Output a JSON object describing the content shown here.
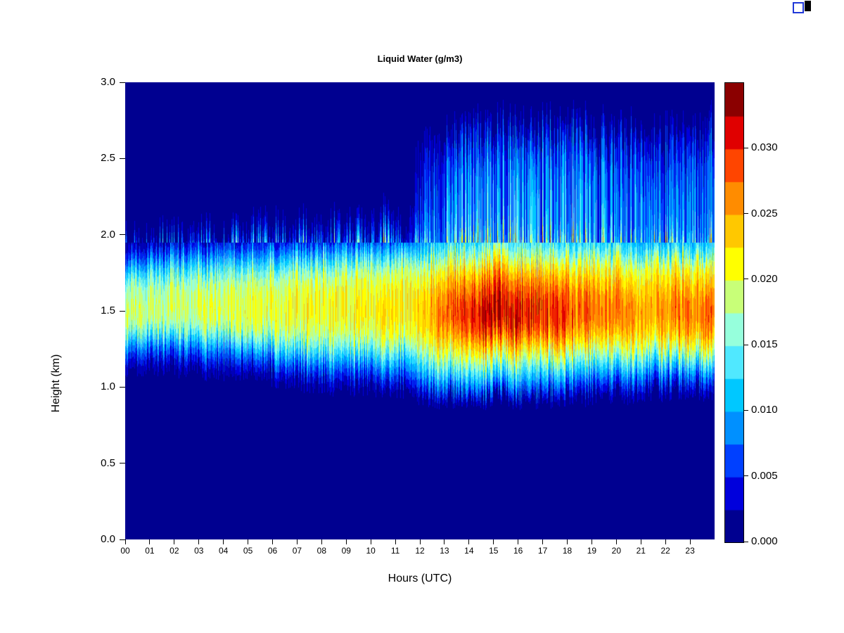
{
  "page": {
    "background": "#ffffff"
  },
  "chart_data": {
    "type": "heatmap",
    "title": "Liquid Water (g/m3)",
    "xlabel": "Hours (UTC)",
    "ylabel": "Height (km)",
    "x_range": [
      0,
      24
    ],
    "y_range": [
      0,
      3
    ],
    "x_tick_labels": [
      "00",
      "01",
      "02",
      "03",
      "04",
      "05",
      "06",
      "07",
      "08",
      "09",
      "10",
      "11",
      "12",
      "13",
      "14",
      "15",
      "16",
      "17",
      "18",
      "19",
      "20",
      "21",
      "22",
      "23"
    ],
    "x_tick_values": [
      0,
      1,
      2,
      3,
      4,
      5,
      6,
      7,
      8,
      9,
      10,
      11,
      12,
      13,
      14,
      15,
      16,
      17,
      18,
      19,
      20,
      21,
      22,
      23
    ],
    "y_tick_labels": [
      "0.0",
      "0.5",
      "1.0",
      "1.5",
      "2.0",
      "2.5",
      "3.0"
    ],
    "y_tick_values": [
      0.0,
      0.5,
      1.0,
      1.5,
      2.0,
      2.5,
      3.0
    ],
    "value_scale": 0.001,
    "grid": {
      "hours": [
        0,
        1,
        2,
        3,
        4,
        5,
        6,
        7,
        8,
        9,
        10,
        11,
        12,
        13,
        14,
        15,
        16,
        17,
        18,
        19,
        20,
        21,
        22,
        23
      ],
      "heights": [
        0.0,
        0.1,
        0.2,
        0.3,
        0.4,
        0.5,
        0.6,
        0.7,
        0.8,
        0.9,
        1.0,
        1.1,
        1.2,
        1.3,
        1.4,
        1.5,
        1.6,
        1.7,
        1.8,
        1.9,
        2.0,
        2.1,
        2.2,
        2.3,
        2.4,
        2.5,
        2.6,
        2.7,
        2.8,
        2.9,
        3.0
      ],
      "values_by_height": [
        [
          0,
          0,
          0,
          0,
          0,
          0,
          0,
          0,
          0,
          0,
          0,
          0,
          0,
          0,
          0,
          0,
          0,
          0,
          0,
          0,
          0,
          0,
          0,
          0
        ],
        [
          0,
          0,
          0,
          0,
          0,
          0,
          0,
          0,
          0,
          0,
          0,
          0,
          0,
          0,
          0,
          0,
          0,
          0,
          0,
          0,
          0,
          0,
          0,
          0
        ],
        [
          0,
          0,
          0,
          0,
          0,
          0,
          0,
          0,
          0,
          0,
          0,
          0,
          0,
          0,
          0,
          0,
          0,
          0,
          0,
          0,
          0,
          0,
          0,
          0
        ],
        [
          0,
          0,
          0,
          0,
          0,
          0,
          0,
          0,
          0,
          0,
          0,
          0,
          0,
          0,
          0,
          0,
          0,
          0,
          0,
          0,
          0,
          0,
          0,
          0
        ],
        [
          0,
          0,
          0,
          0,
          0,
          0,
          0,
          0,
          0,
          0,
          0,
          0,
          0,
          0,
          0,
          0,
          0,
          0,
          0,
          0,
          0,
          0,
          0,
          0
        ],
        [
          0,
          0,
          0,
          0,
          0,
          0,
          0,
          0,
          0,
          0,
          0,
          0,
          0,
          0,
          0,
          0,
          0,
          0,
          0,
          0,
          0,
          0,
          0,
          0
        ],
        [
          0,
          0,
          0,
          0,
          0,
          0,
          0,
          0,
          0,
          0,
          0,
          0,
          0,
          0,
          0,
          0,
          0,
          0,
          0,
          0,
          0,
          0,
          0,
          0
        ],
        [
          0,
          0,
          0,
          0,
          0,
          0,
          0,
          0,
          0,
          0,
          0,
          0,
          0,
          0,
          0,
          0,
          0,
          0,
          0,
          0,
          0,
          0,
          0,
          0
        ],
        [
          0,
          0,
          0,
          0,
          0,
          0,
          0,
          0,
          0,
          0,
          0,
          0,
          0,
          0,
          0,
          0,
          0,
          0,
          0,
          0,
          0,
          0,
          0,
          0
        ],
        [
          0,
          0,
          0,
          0,
          0,
          0,
          0,
          0,
          0,
          0,
          0,
          0,
          0,
          0,
          0,
          0,
          0,
          0,
          0,
          0,
          0,
          0,
          0,
          0
        ],
        [
          0,
          0,
          0,
          0,
          0,
          0,
          1,
          1,
          2,
          2,
          2,
          3,
          6,
          8,
          8,
          8,
          8,
          6,
          5,
          4,
          4,
          3,
          3,
          3
        ],
        [
          1,
          1,
          1,
          2,
          2,
          2,
          4,
          5,
          6,
          6,
          7,
          8,
          12,
          14,
          14,
          14,
          13,
          12,
          11,
          10,
          10,
          9,
          9,
          9
        ],
        [
          4,
          4,
          5,
          6,
          6,
          7,
          10,
          11,
          12,
          12,
          13,
          13,
          17,
          19,
          20,
          20,
          19,
          18,
          17,
          16,
          16,
          15,
          16,
          16
        ],
        [
          10,
          10,
          11,
          12,
          13,
          14,
          16,
          17,
          17,
          18,
          18,
          19,
          21,
          24,
          26,
          26,
          25,
          24,
          23,
          22,
          21,
          21,
          22,
          22
        ],
        [
          17,
          17,
          18,
          18,
          19,
          19,
          20,
          20,
          20,
          21,
          21,
          21,
          24,
          28,
          31,
          31,
          30,
          28,
          27,
          26,
          25,
          24,
          26,
          26
        ],
        [
          19,
          19,
          19,
          20,
          20,
          20,
          21,
          21,
          21,
          22,
          22,
          22,
          25,
          30,
          32,
          32,
          31,
          29,
          28,
          27,
          26,
          25,
          27,
          27
        ],
        [
          18,
          18,
          19,
          19,
          19,
          20,
          20,
          21,
          21,
          21,
          21,
          22,
          24,
          28,
          30,
          30,
          29,
          28,
          27,
          26,
          25,
          24,
          26,
          26
        ],
        [
          16,
          16,
          17,
          17,
          18,
          18,
          19,
          19,
          19,
          20,
          20,
          20,
          22,
          25,
          27,
          27,
          26,
          25,
          24,
          23,
          22,
          22,
          23,
          23
        ],
        [
          10,
          11,
          12,
          12,
          13,
          13,
          14,
          15,
          15,
          16,
          16,
          17,
          19,
          21,
          22,
          22,
          21,
          21,
          20,
          20,
          19,
          19,
          20,
          20
        ],
        [
          4,
          5,
          6,
          6,
          7,
          7,
          8,
          8,
          9,
          9,
          10,
          10,
          13,
          15,
          16,
          16,
          15,
          15,
          14,
          14,
          13,
          12,
          13,
          13
        ],
        [
          1,
          1,
          2,
          2,
          2,
          3,
          3,
          3,
          4,
          4,
          5,
          5,
          10,
          11,
          12,
          12,
          12,
          11,
          11,
          11,
          10,
          9,
          10,
          10
        ],
        [
          0,
          0,
          0,
          0,
          0,
          1,
          1,
          1,
          1,
          1,
          2,
          2,
          9,
          10,
          11,
          11,
          11,
          11,
          10,
          10,
          9,
          8,
          9,
          9
        ],
        [
          0,
          0,
          0,
          0,
          0,
          0,
          0,
          0,
          0,
          1,
          1,
          1,
          8,
          10,
          10,
          10,
          10,
          10,
          10,
          9,
          9,
          8,
          8,
          9
        ],
        [
          0,
          0,
          0,
          0,
          0,
          0,
          0,
          0,
          0,
          0,
          0,
          1,
          7,
          9,
          10,
          10,
          10,
          10,
          9,
          9,
          9,
          7,
          8,
          8
        ],
        [
          0,
          0,
          0,
          0,
          0,
          0,
          0,
          0,
          0,
          0,
          0,
          0,
          6,
          8,
          9,
          9,
          9,
          9,
          9,
          8,
          8,
          6,
          7,
          8
        ],
        [
          1,
          0,
          1,
          0,
          0,
          0,
          0,
          0,
          0,
          0,
          0,
          0,
          5,
          7,
          8,
          8,
          8,
          8,
          8,
          7,
          7,
          5,
          6,
          7
        ],
        [
          1,
          0,
          1,
          0,
          0,
          0,
          0,
          0,
          0,
          0,
          0,
          0,
          3,
          5,
          6,
          6,
          6,
          6,
          6,
          5,
          5,
          3,
          4,
          5
        ],
        [
          0,
          0,
          0,
          0,
          0,
          0,
          0,
          0,
          0,
          0,
          0,
          0,
          1,
          2,
          3,
          3,
          3,
          3,
          3,
          2,
          2,
          1,
          2,
          3
        ],
        [
          0,
          0,
          0,
          0,
          0,
          0,
          0,
          0,
          0,
          0,
          0,
          0,
          0,
          0,
          0,
          0,
          0,
          0,
          0,
          0,
          0,
          0,
          0,
          0
        ],
        [
          0,
          0,
          0,
          0,
          0,
          0,
          0,
          0,
          0,
          0,
          0,
          0,
          0,
          0,
          0,
          0,
          0,
          0,
          0,
          0,
          0,
          0,
          0,
          0
        ],
        [
          0,
          0,
          0,
          0,
          0,
          0,
          0,
          0,
          0,
          0,
          0,
          0,
          0,
          0,
          0,
          0,
          0,
          0,
          0,
          0,
          0,
          0,
          0,
          0
        ]
      ]
    },
    "colorbar": {
      "band_size": 0.0025,
      "max": 0.035,
      "colors": [
        "#000090",
        "#0000DC",
        "#0040FF",
        "#0090FF",
        "#00C8FF",
        "#50E8FF",
        "#96FFDC",
        "#C8FF78",
        "#FFFF00",
        "#FFC800",
        "#FF8C00",
        "#FF4500",
        "#E00000",
        "#8B0000"
      ],
      "tick_values": [
        0.0,
        0.005,
        0.01,
        0.015,
        0.02,
        0.025,
        0.03
      ],
      "tick_labels": [
        "0.000",
        "0.005",
        "0.010",
        "0.015",
        "0.020",
        "0.025",
        "0.030"
      ]
    },
    "background_color": "#000090",
    "noise": {
      "seed": 12345,
      "band_shift_km": 0.16,
      "band_amp_jitter": 0.26,
      "upper_shift_km": 0.3,
      "upper_amp_min": 0.3,
      "upper_amp_span": 1.2
    }
  },
  "corner_artifact": {
    "blue": "#2038d8",
    "black": "#000000"
  }
}
